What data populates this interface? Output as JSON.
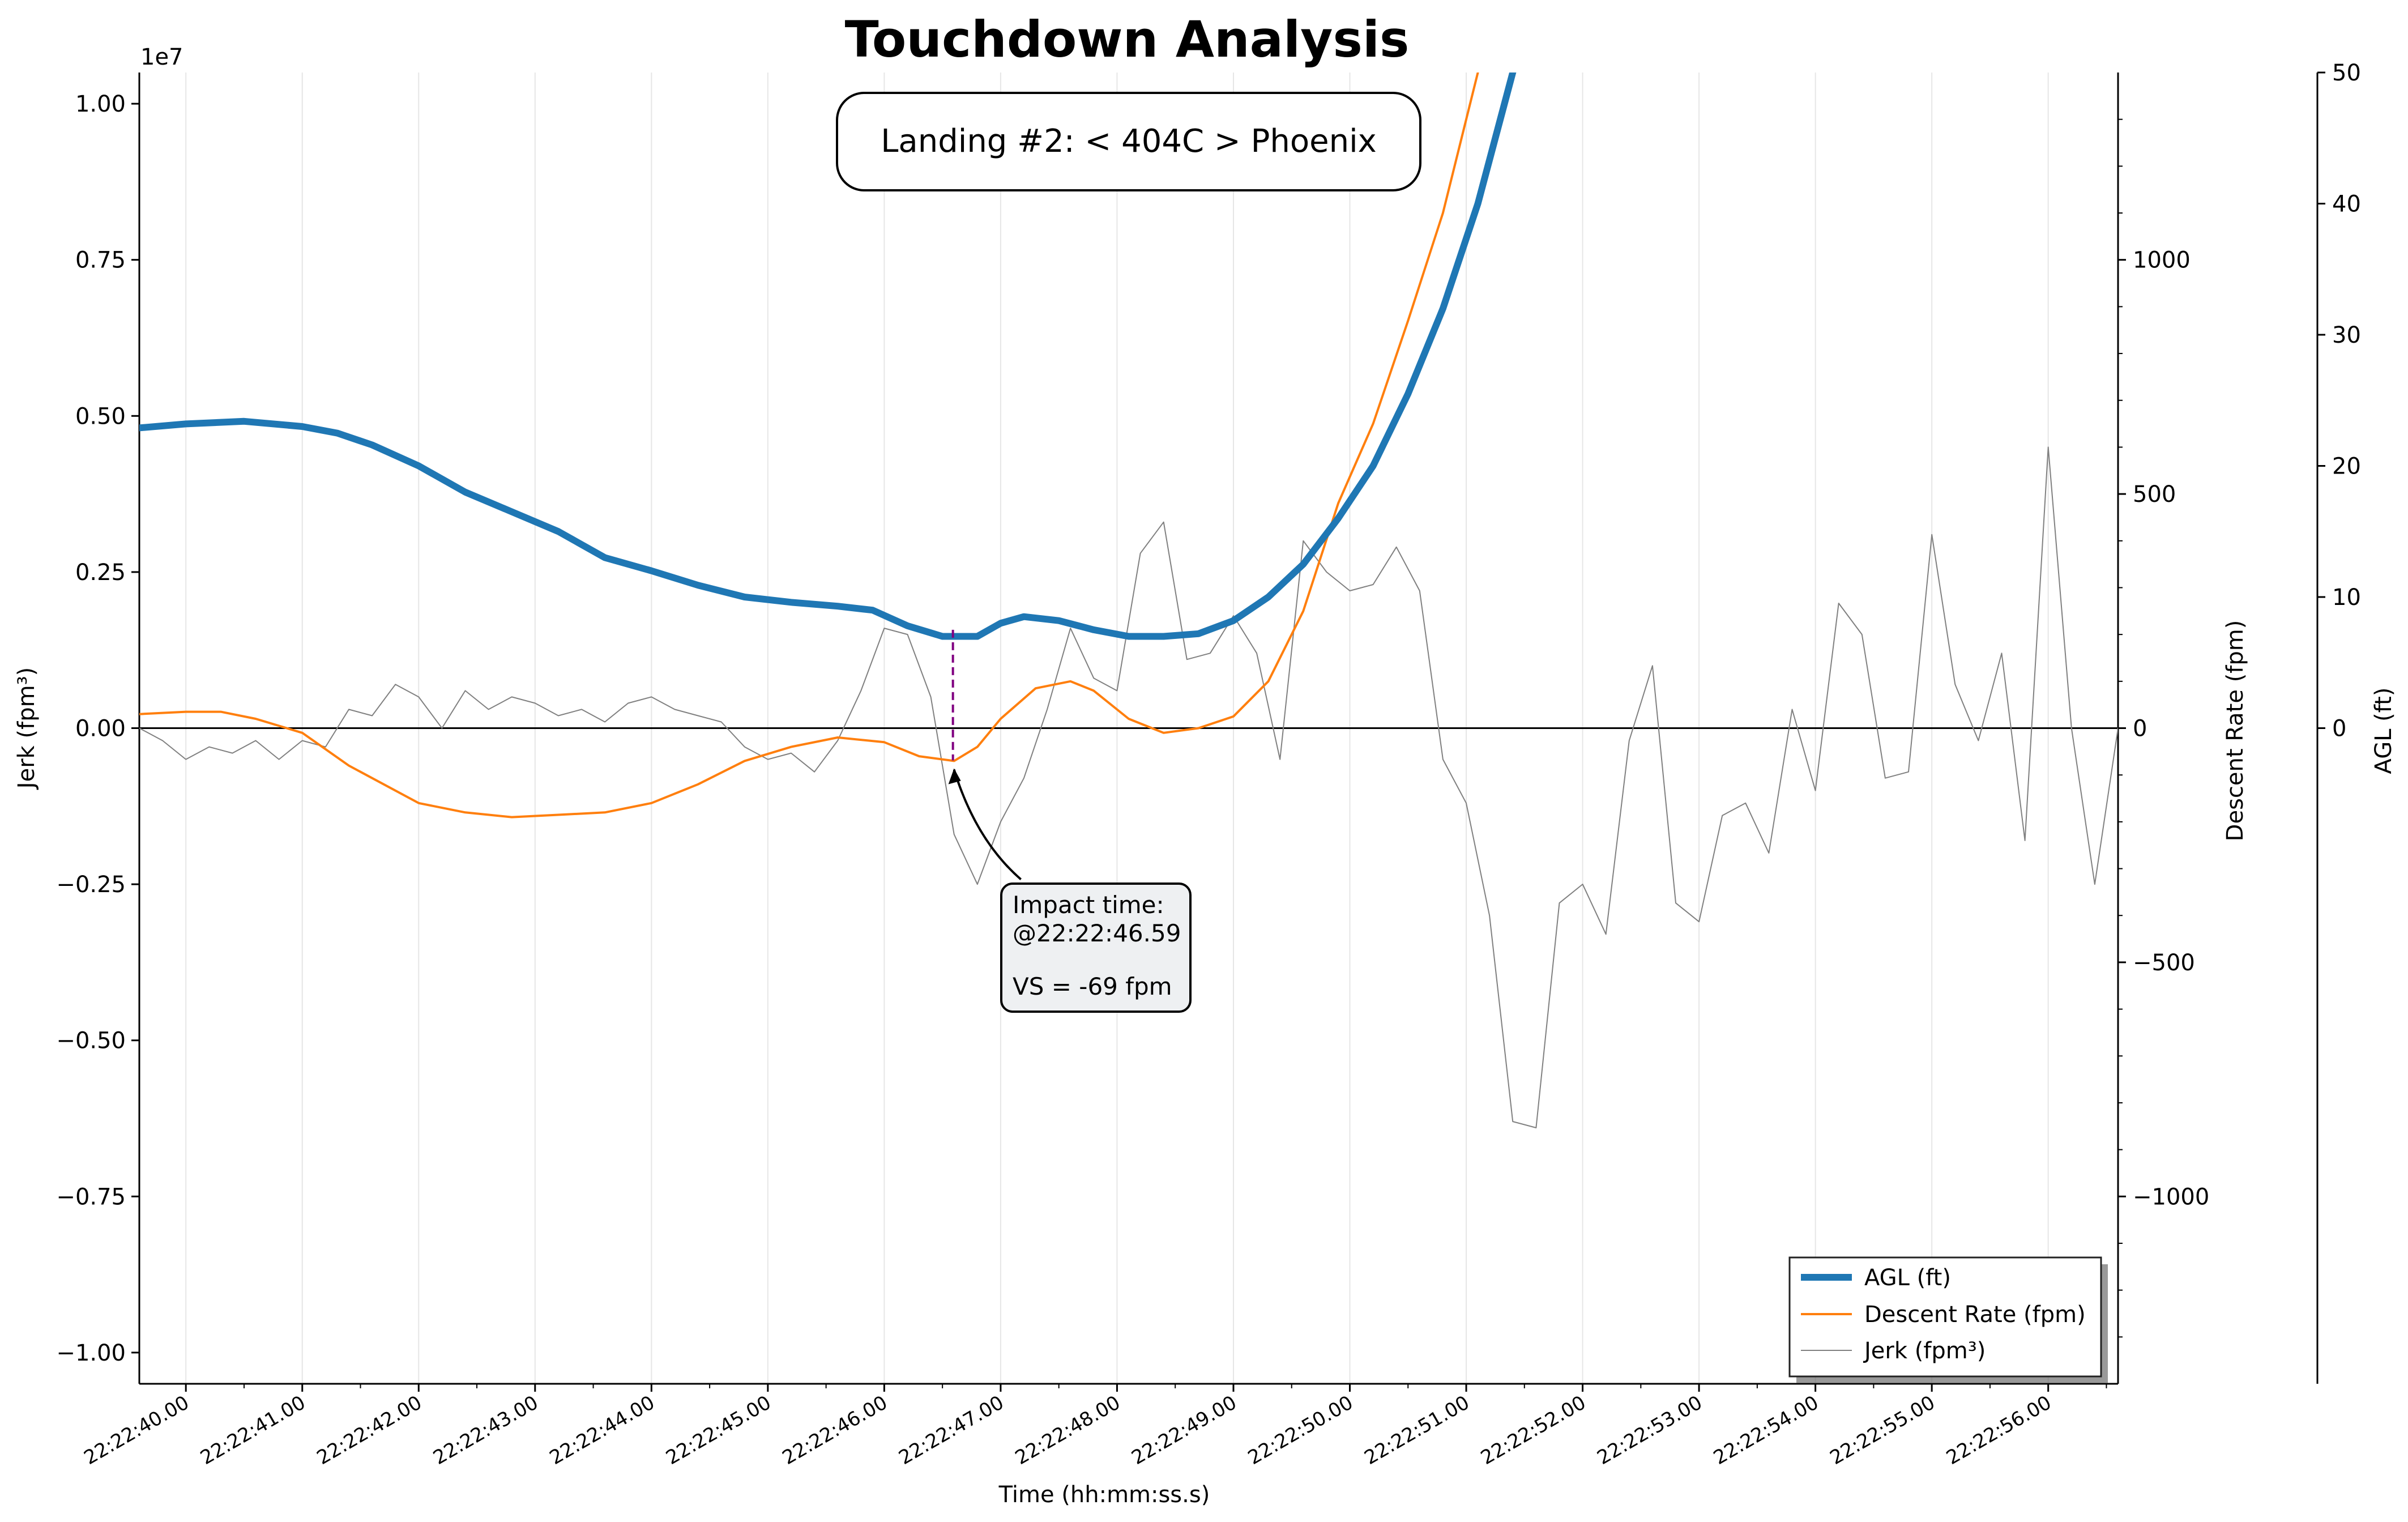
{
  "chart_data": {
    "type": "line",
    "title": "Touchdown Analysis",
    "subtitle_box": "Landing #2: < 404C > Phoenix",
    "xlabel": "Time (hh:mm:ss.s)",
    "xlim": [
      -0.4,
      16.6
    ],
    "x_tick_labels": [
      "22:22:40.00",
      "22:22:41.00",
      "22:22:42.00",
      "22:22:43.00",
      "22:22:44.00",
      "22:22:45.00",
      "22:22:46.00",
      "22:22:47.00",
      "22:22:48.00",
      "22:22:49.00",
      "22:22:50.00",
      "22:22:51.00",
      "22:22:52.00",
      "22:22:53.00",
      "22:22:54.00",
      "22:22:55.00",
      "22:22:56.00"
    ],
    "axes": {
      "jerk": {
        "label": "Jerk (fpm³)",
        "multiplier": "1e7",
        "ylim": [
          -1.05,
          1.05
        ],
        "ticks": [
          -1.0,
          -0.75,
          -0.5,
          -0.25,
          0.0,
          0.25,
          0.5,
          0.75,
          1.0
        ],
        "tick_labels": [
          "−1.00",
          "−0.75",
          "−0.50",
          "−0.25",
          "0.00",
          "0.25",
          "0.50",
          "0.75",
          "1.00"
        ]
      },
      "descent": {
        "label": "Descent Rate (fpm)",
        "ylim": [
          -1400,
          1400
        ],
        "ticks": [
          -1000,
          -500,
          0,
          500,
          1000
        ],
        "tick_labels": [
          "−1000",
          "−500",
          "0",
          "500",
          "1000"
        ]
      },
      "agl": {
        "label": "AGL (ft)",
        "ylim": [
          -50,
          50
        ],
        "ticks": [
          0,
          10,
          20,
          30,
          40,
          50
        ],
        "tick_labels": [
          "0",
          "10",
          "20",
          "30",
          "40",
          "50"
        ]
      }
    },
    "grid": "vertical",
    "legend_position": "lower-right",
    "series": [
      {
        "name": "AGL (ft)",
        "axis": "agl",
        "color": "#1f77b4",
        "x": [
          -0.4,
          0,
          0.5,
          1,
          1.3,
          1.6,
          2,
          2.4,
          2.8,
          3.2,
          3.6,
          4,
          4.4,
          4.8,
          5.2,
          5.6,
          5.9,
          6.2,
          6.5,
          6.8,
          7.0,
          7.2,
          7.5,
          7.8,
          8.1,
          8.4,
          8.7,
          9.0,
          9.3,
          9.6,
          9.9,
          10.2,
          10.5,
          10.8,
          11.1,
          11.4,
          11.7,
          12.0
        ],
        "y": [
          22.9,
          23.2,
          23.4,
          23.0,
          22.5,
          21.6,
          20.0,
          18.0,
          16.5,
          15.0,
          13.0,
          12.0,
          10.9,
          10.0,
          9.6,
          9.3,
          9.0,
          7.8,
          7.0,
          7.0,
          8.0,
          8.5,
          8.2,
          7.5,
          7.0,
          7.0,
          7.2,
          8.2,
          10.0,
          12.5,
          16.0,
          20.0,
          25.5,
          32.0,
          40.0,
          50.0,
          60.0,
          70.0
        ]
      },
      {
        "name": "Descent Rate (fpm)",
        "axis": "descent",
        "color": "#ff7f0e",
        "x": [
          -0.4,
          0,
          0.3,
          0.6,
          1,
          1.4,
          2,
          2.4,
          2.8,
          3.2,
          3.6,
          4,
          4.4,
          4.8,
          5.2,
          5.6,
          6.0,
          6.3,
          6.6,
          6.8,
          7.0,
          7.3,
          7.6,
          7.8,
          8.1,
          8.4,
          8.7,
          9.0,
          9.3,
          9.6,
          9.9,
          10.2,
          10.5,
          10.8,
          11.1,
          11.4,
          11.7
        ],
        "y": [
          30,
          35,
          35,
          20,
          -10,
          -80,
          -160,
          -180,
          -190,
          -185,
          -180,
          -160,
          -120,
          -70,
          -40,
          -20,
          -30,
          -60,
          -70,
          -40,
          20,
          85,
          100,
          80,
          20,
          -10,
          0,
          25,
          100,
          250,
          480,
          650,
          870,
          1100,
          1400,
          1700,
          2100
        ]
      },
      {
        "name": "Jerk (fpm³)",
        "axis": "jerk",
        "color": "#808080",
        "x": [
          -0.4,
          -0.2,
          0,
          0.2,
          0.4,
          0.6,
          0.8,
          1.0,
          1.2,
          1.4,
          1.6,
          1.8,
          2.0,
          2.2,
          2.4,
          2.6,
          2.8,
          3.0,
          3.2,
          3.4,
          3.6,
          3.8,
          4.0,
          4.2,
          4.4,
          4.6,
          4.8,
          5.0,
          5.2,
          5.4,
          5.6,
          5.8,
          6.0,
          6.2,
          6.4,
          6.6,
          6.8,
          7.0,
          7.2,
          7.4,
          7.6,
          7.8,
          8.0,
          8.2,
          8.4,
          8.6,
          8.8,
          9.0,
          9.2,
          9.4,
          9.6,
          9.8,
          10.0,
          10.2,
          10.4,
          10.6,
          10.8,
          11.0,
          11.2,
          11.4,
          11.6,
          11.8,
          12.0,
          12.2,
          12.4,
          12.6,
          12.8,
          13.0,
          13.2,
          13.4,
          13.6,
          13.8,
          14.0,
          14.2,
          14.4,
          14.6,
          14.8,
          15.0,
          15.2,
          15.4,
          15.6,
          15.8,
          16.0,
          16.2,
          16.4,
          16.6
        ],
        "y": [
          0.0,
          -0.02,
          -0.05,
          -0.03,
          -0.04,
          -0.02,
          -0.05,
          -0.02,
          -0.03,
          0.03,
          0.02,
          0.07,
          0.05,
          0.0,
          0.06,
          0.03,
          0.05,
          0.04,
          0.02,
          0.03,
          0.01,
          0.04,
          0.05,
          0.03,
          0.02,
          0.01,
          -0.03,
          -0.05,
          -0.04,
          -0.07,
          -0.02,
          0.06,
          0.16,
          0.15,
          0.05,
          -0.17,
          -0.25,
          -0.15,
          -0.08,
          0.03,
          0.16,
          0.08,
          0.06,
          0.28,
          0.33,
          0.11,
          0.12,
          0.18,
          0.12,
          -0.05,
          0.3,
          0.25,
          0.22,
          0.23,
          0.29,
          0.22,
          -0.05,
          -0.12,
          -0.3,
          -0.63,
          -0.64,
          -0.28,
          -0.25,
          -0.33,
          -0.02,
          0.1,
          -0.28,
          -0.31,
          -0.14,
          -0.12,
          -0.2,
          0.03,
          -0.1,
          0.2,
          0.15,
          -0.08,
          -0.07,
          0.31,
          0.07,
          -0.02,
          0.12,
          -0.18,
          0.45,
          0.0,
          -0.25,
          0.0
        ]
      }
    ],
    "annotation": {
      "marker_x": 6.59,
      "marker_top_agl": 7.5,
      "marker_bottom_descent": -69,
      "line1": "Impact time:",
      "line2": "@22:22:46.59",
      "line3": "VS = -69 fpm"
    }
  }
}
